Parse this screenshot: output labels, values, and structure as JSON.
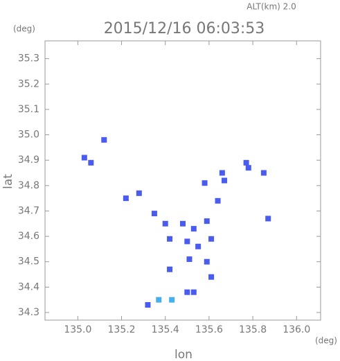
{
  "chart_data": {
    "type": "scatter",
    "title": "2015/12/16 06:03:53",
    "subtitle": "ALT(km) 2.0",
    "y_unit": "(deg)",
    "x_unit": "(deg)",
    "xlabel": "lon",
    "ylabel": "lat",
    "xlim": [
      134.85,
      136.11
    ],
    "ylim": [
      34.27,
      35.37
    ],
    "xticks": [
      {
        "value": 135,
        "label": "135.0"
      },
      135.2,
      135.4,
      135.6,
      135.8,
      {
        "value": 136,
        "label": "136.0"
      }
    ],
    "yticks": [
      34.3,
      34.4,
      34.5,
      34.6,
      34.7,
      34.8,
      34.9,
      {
        "value": 35,
        "label": "35.0"
      },
      35.1,
      35.2,
      35.3
    ],
    "series": [
      {
        "color": "#4a5cf0",
        "x": [
          135.03,
          135.06,
          135.12,
          135.22,
          135.28,
          135.35,
          135.4,
          135.48,
          135.53,
          135.59,
          135.61,
          135.42,
          135.5,
          135.55,
          135.51,
          135.59,
          135.42,
          135.61,
          135.53,
          135.5,
          135.32,
          135.77,
          135.78,
          135.85,
          135.67,
          135.58,
          135.64,
          135.87,
          135.66
        ],
        "y": [
          34.91,
          34.89,
          34.98,
          34.75,
          34.77,
          34.69,
          34.65,
          34.65,
          34.63,
          34.66,
          34.59,
          34.59,
          34.58,
          34.56,
          34.51,
          34.5,
          34.47,
          34.44,
          34.38,
          34.38,
          34.33,
          34.89,
          34.87,
          34.85,
          34.82,
          34.81,
          34.74,
          34.67,
          34.85
        ]
      },
      {
        "color": "#45b0f0",
        "x": [
          135.37,
          135.43
        ],
        "y": [
          34.35,
          34.35
        ]
      }
    ]
  }
}
